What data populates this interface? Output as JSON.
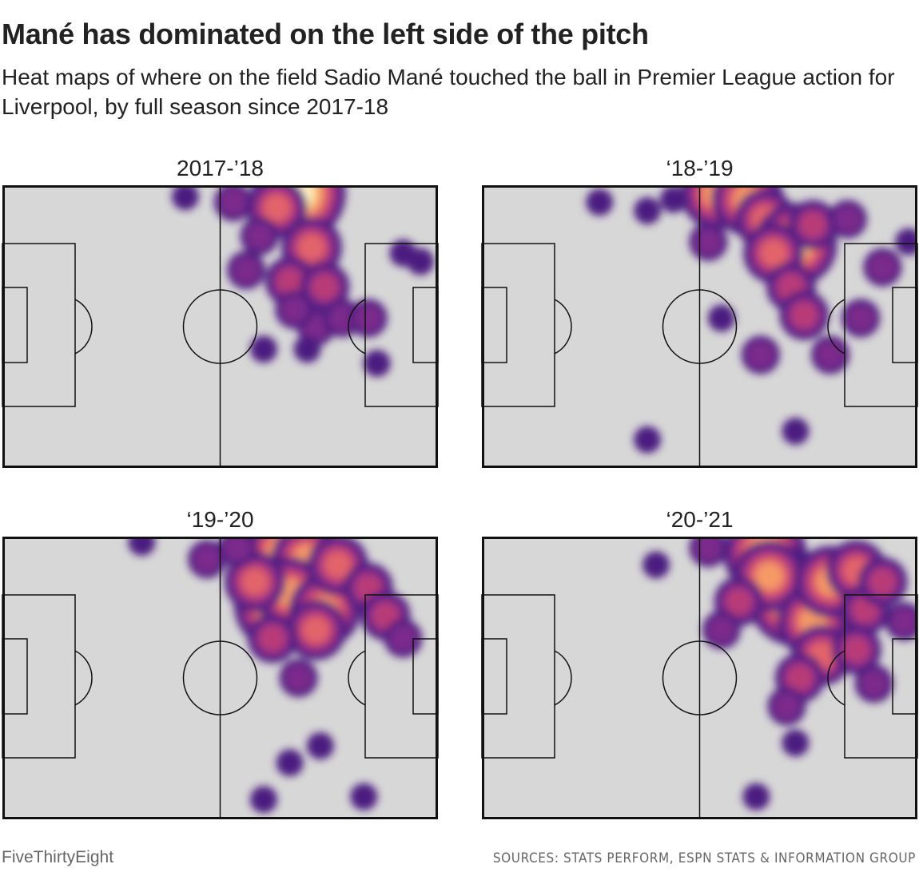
{
  "header": {
    "title": "Mané has dominated on the left side of the pitch",
    "subtitle": "Heat maps of where on the field Sadio Mané touched the ball in Premier League action for Liverpool, by full season since 2017-18"
  },
  "footer": {
    "brand": "FiveThirtyEight",
    "sources": "SOURCES: STATS PERFORM, ESPN STATS & INFORMATION GROUP"
  },
  "colors": {
    "pitch": "#d7d7d7",
    "lines": "#111111",
    "density_scale": [
      "#4c1d80",
      "#7b2a8c",
      "#b83b78",
      "#e2636a",
      "#f59a66",
      "#fcd28e",
      "#fff6cc"
    ]
  },
  "chart_data": [
    {
      "type": "heatmap",
      "title": "2017-’18",
      "x_range": [
        0,
        100
      ],
      "y_range": [
        0,
        100
      ],
      "hotspots": [
        {
          "x": 68,
          "y": 3,
          "level": 7
        },
        {
          "x": 63,
          "y": 8,
          "level": 4
        },
        {
          "x": 71,
          "y": 22,
          "level": 4
        },
        {
          "x": 66,
          "y": 34,
          "level": 3
        },
        {
          "x": 59,
          "y": 18,
          "level": 2
        },
        {
          "x": 56,
          "y": 30,
          "level": 2
        },
        {
          "x": 74,
          "y": 36,
          "level": 3
        },
        {
          "x": 72,
          "y": 50,
          "level": 2
        },
        {
          "x": 78,
          "y": 47,
          "level": 2
        },
        {
          "x": 84,
          "y": 47,
          "level": 2
        },
        {
          "x": 67,
          "y": 44,
          "level": 2
        },
        {
          "x": 86,
          "y": 63,
          "level": 1
        },
        {
          "x": 92,
          "y": 24,
          "level": 1
        },
        {
          "x": 96,
          "y": 27,
          "level": 1
        },
        {
          "x": 42,
          "y": 4,
          "level": 1
        },
        {
          "x": 53,
          "y": 6,
          "level": 2
        },
        {
          "x": 60,
          "y": 58,
          "level": 1
        },
        {
          "x": 70,
          "y": 58,
          "level": 1
        }
      ]
    },
    {
      "type": "heatmap",
      "title": "‘18-’19",
      "x_range": [
        0,
        100
      ],
      "y_range": [
        0,
        100
      ],
      "hotspots": [
        {
          "x": 54,
          "y": 3,
          "level": 5
        },
        {
          "x": 61,
          "y": 5,
          "level": 5
        },
        {
          "x": 65,
          "y": 12,
          "level": 4
        },
        {
          "x": 72,
          "y": 21,
          "level": 6
        },
        {
          "x": 67,
          "y": 24,
          "level": 4
        },
        {
          "x": 76,
          "y": 14,
          "level": 3
        },
        {
          "x": 71,
          "y": 36,
          "level": 3
        },
        {
          "x": 74,
          "y": 46,
          "level": 3
        },
        {
          "x": 64,
          "y": 60,
          "level": 2
        },
        {
          "x": 80,
          "y": 60,
          "level": 2
        },
        {
          "x": 87,
          "y": 47,
          "level": 2
        },
        {
          "x": 92,
          "y": 29,
          "level": 2
        },
        {
          "x": 98,
          "y": 20,
          "level": 1
        },
        {
          "x": 84,
          "y": 12,
          "level": 2
        },
        {
          "x": 52,
          "y": 20,
          "level": 2
        },
        {
          "x": 44,
          "y": 5,
          "level": 1
        },
        {
          "x": 38,
          "y": 9,
          "level": 1
        },
        {
          "x": 27,
          "y": 6,
          "level": 1
        },
        {
          "x": 55,
          "y": 47,
          "level": 1
        },
        {
          "x": 72,
          "y": 87,
          "level": 1
        },
        {
          "x": 38,
          "y": 90,
          "level": 1
        }
      ]
    },
    {
      "type": "heatmap",
      "title": "‘19-’20",
      "x_range": [
        0,
        100
      ],
      "y_range": [
        0,
        100
      ],
      "hotspots": [
        {
          "x": 65,
          "y": 6,
          "level": 6
        },
        {
          "x": 70,
          "y": 8,
          "level": 5
        },
        {
          "x": 64,
          "y": 24,
          "level": 7
        },
        {
          "x": 66,
          "y": 20,
          "level": 5
        },
        {
          "x": 74,
          "y": 26,
          "level": 5
        },
        {
          "x": 72,
          "y": 33,
          "level": 4
        },
        {
          "x": 58,
          "y": 16,
          "level": 4
        },
        {
          "x": 77,
          "y": 10,
          "level": 4
        },
        {
          "x": 62,
          "y": 36,
          "level": 3
        },
        {
          "x": 68,
          "y": 50,
          "level": 2
        },
        {
          "x": 84,
          "y": 18,
          "level": 3
        },
        {
          "x": 88,
          "y": 28,
          "level": 3
        },
        {
          "x": 92,
          "y": 36,
          "level": 2
        },
        {
          "x": 47,
          "y": 8,
          "level": 2
        },
        {
          "x": 54,
          "y": 4,
          "level": 2
        },
        {
          "x": 73,
          "y": 74,
          "level": 1
        },
        {
          "x": 66,
          "y": 80,
          "level": 1
        },
        {
          "x": 60,
          "y": 93,
          "level": 1
        },
        {
          "x": 83,
          "y": 92,
          "level": 1
        },
        {
          "x": 32,
          "y": 2,
          "level": 1
        }
      ]
    },
    {
      "type": "heatmap",
      "title": "‘20-’21",
      "x_range": [
        0,
        100
      ],
      "y_range": [
        0,
        100
      ],
      "hotspots": [
        {
          "x": 65,
          "y": 6,
          "level": 6
        },
        {
          "x": 70,
          "y": 18,
          "level": 6
        },
        {
          "x": 72,
          "y": 22,
          "level": 7
        },
        {
          "x": 66,
          "y": 14,
          "level": 5
        },
        {
          "x": 76,
          "y": 30,
          "level": 5
        },
        {
          "x": 80,
          "y": 16,
          "level": 5
        },
        {
          "x": 86,
          "y": 12,
          "level": 4
        },
        {
          "x": 59,
          "y": 23,
          "level": 3
        },
        {
          "x": 78,
          "y": 42,
          "level": 4
        },
        {
          "x": 73,
          "y": 50,
          "level": 3
        },
        {
          "x": 70,
          "y": 60,
          "level": 2
        },
        {
          "x": 88,
          "y": 26,
          "level": 3
        },
        {
          "x": 92,
          "y": 16,
          "level": 3
        },
        {
          "x": 86,
          "y": 40,
          "level": 3
        },
        {
          "x": 90,
          "y": 52,
          "level": 2
        },
        {
          "x": 97,
          "y": 30,
          "level": 2
        },
        {
          "x": 52,
          "y": 4,
          "level": 2
        },
        {
          "x": 55,
          "y": 33,
          "level": 2
        },
        {
          "x": 72,
          "y": 73,
          "level": 1
        },
        {
          "x": 63,
          "y": 92,
          "level": 1
        },
        {
          "x": 40,
          "y": 10,
          "level": 1
        }
      ]
    }
  ]
}
